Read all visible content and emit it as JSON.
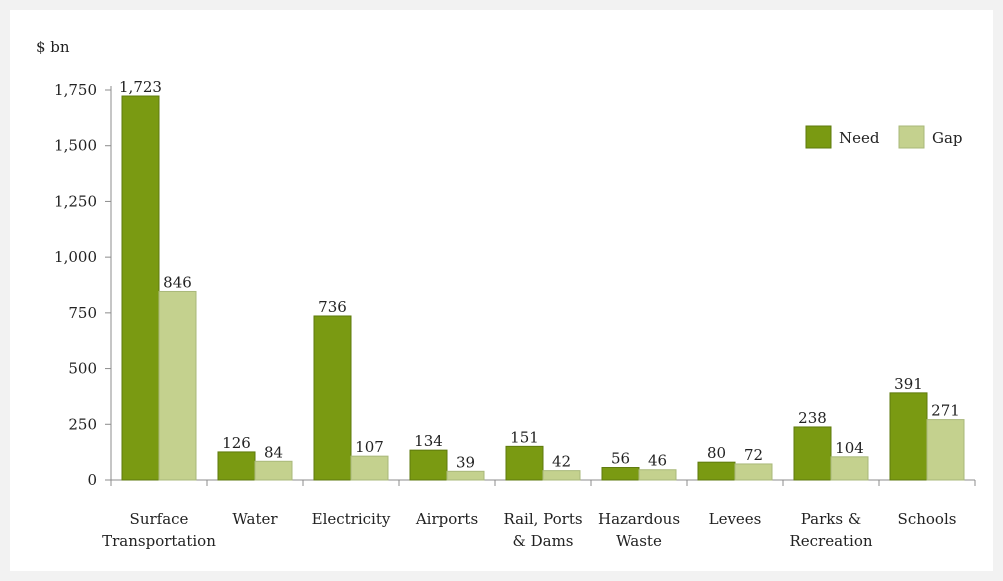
{
  "chart_data": {
    "type": "bar",
    "title": "",
    "ylabel": "$ bn",
    "xlabel": "",
    "ylim": [
      0,
      1750
    ],
    "yticks": [
      0,
      250,
      500,
      750,
      1000,
      1250,
      1500,
      1750
    ],
    "ytick_labels": [
      "0",
      "250",
      "500",
      "750",
      "1,000",
      "1,250",
      "1,500",
      "1,750"
    ],
    "categories": [
      [
        "Surface",
        "Transportation"
      ],
      [
        "Water"
      ],
      [
        "Electricity"
      ],
      [
        "Airports"
      ],
      [
        "Rail, Ports",
        "& Dams"
      ],
      [
        "Hazardous",
        "Waste"
      ],
      [
        "Levees"
      ],
      [
        "Parks &",
        "Recreation"
      ],
      [
        "Schools"
      ]
    ],
    "series": [
      {
        "name": "Need",
        "color": "#7a9a12",
        "values": [
          1723,
          126,
          736,
          134,
          151,
          56,
          80,
          238,
          391
        ],
        "labels": [
          "1,723",
          "126",
          "736",
          "134",
          "151",
          "56",
          "80",
          "238",
          "391"
        ]
      },
      {
        "name": "Gap",
        "color": "#c4d18e",
        "values": [
          846,
          84,
          107,
          39,
          42,
          46,
          72,
          104,
          271
        ],
        "labels": [
          "846",
          "84",
          "107",
          "39",
          "42",
          "46",
          "72",
          "104",
          "271"
        ]
      }
    ],
    "legend": "top-right",
    "grid": false
  }
}
